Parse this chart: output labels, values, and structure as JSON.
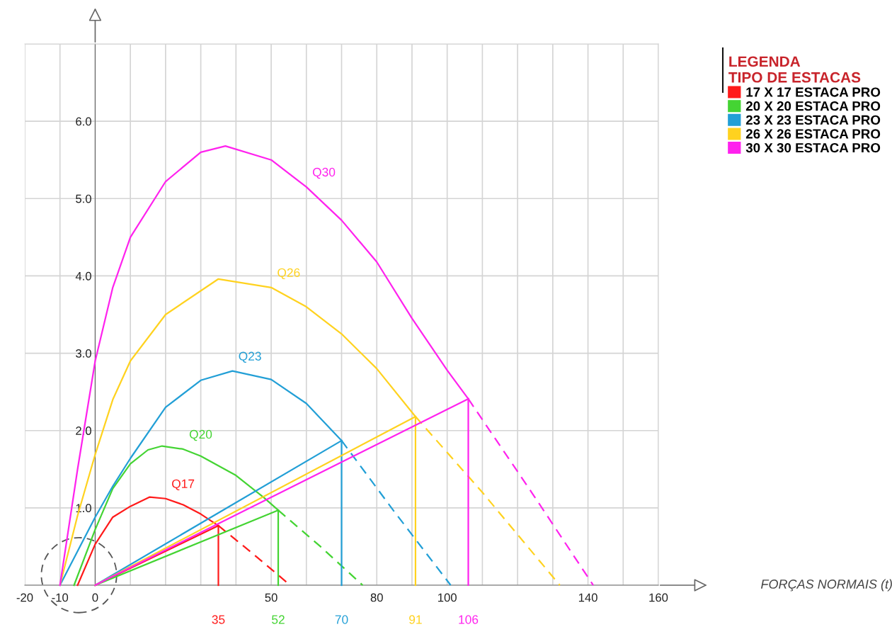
{
  "chart_data": {
    "type": "line",
    "legend_title": "LEGENDA\nTIPO DE ESTACAS",
    "legend": "top right",
    "grid": true,
    "xlim": [
      -20,
      160
    ],
    "ylim": [
      0,
      7
    ],
    "xticks": [
      -20,
      -10,
      0,
      {
        "value": 10,
        "label": null
      },
      {
        "value": 20,
        "label": null
      },
      {
        "value": 30,
        "label": null
      },
      {
        "value": 40,
        "label": null
      },
      50,
      {
        "value": 60,
        "label": null
      },
      {
        "value": 70,
        "label": null
      },
      80,
      {
        "value": 90,
        "label": null
      },
      100,
      {
        "value": 110,
        "label": null
      },
      {
        "value": 120,
        "label": null
      },
      {
        "value": 130,
        "label": null
      },
      140,
      {
        "value": 150,
        "label": null
      },
      160
    ],
    "yticks": [
      {
        "value": 0,
        "label": null
      },
      {
        "value": 1,
        "label": "1.0"
      },
      {
        "value": 2,
        "label": "2.0"
      },
      {
        "value": 3,
        "label": "3.0"
      },
      {
        "value": 4,
        "label": "4.0"
      },
      {
        "value": 5,
        "label": "5.0"
      },
      {
        "value": 6,
        "label": "6.0"
      },
      {
        "value": 7,
        "label": null
      }
    ],
    "annotations": [
      "Q17",
      "Q20",
      "Q23",
      "Q26",
      "Q30",
      "FORÇAS NORMAIS (t)",
      {
        "text": "35",
        "x": 35,
        "y": 0
      },
      {
        "text": "52",
        "x": 52,
        "y": 0
      },
      {
        "text": "70",
        "x": 70,
        "y": 0
      },
      {
        "text": "91",
        "x": 91,
        "y": 0
      },
      {
        "text": "106",
        "x": 106,
        "y": 0
      }
    ],
    "series": [
      {
        "name": "17 X 17 ESTACA PRO",
        "color": "#ff1a1a",
        "x": [
          -5,
          0,
          5,
          10,
          15.5,
          20,
          25,
          30,
          35
        ],
        "values": [
          0,
          0.53,
          0.88,
          1.02,
          1.14,
          1.12,
          1.04,
          0.92,
          0.77
        ]
      },
      {
        "color": "#ff1a1a",
        "line_style": "dashed",
        "x": [
          35,
          45,
          55.4
        ],
        "values": [
          0.77,
          0.4,
          0
        ]
      },
      {
        "color": "#ff1a1a",
        "x": [
          0,
          35
        ],
        "values": [
          0,
          0.77
        ]
      },
      {
        "color": "#ff1a1a",
        "x": [
          35,
          35
        ],
        "values": [
          0,
          0.77
        ]
      },
      {
        "name": "20 X 20 ESTACA PRO",
        "color": "#44d433",
        "x": [
          -6,
          0,
          5,
          10,
          15,
          19,
          25,
          30,
          40,
          48,
          52
        ],
        "values": [
          0,
          0.72,
          1.25,
          1.57,
          1.75,
          1.8,
          1.76,
          1.67,
          1.42,
          1.13,
          0.97
        ]
      },
      {
        "color": "#44d433",
        "line_style": "dashed",
        "x": [
          52,
          64,
          76
        ],
        "values": [
          0.97,
          0.5,
          0
        ]
      },
      {
        "color": "#44d433",
        "x": [
          0,
          52
        ],
        "values": [
          0,
          0.97
        ]
      },
      {
        "color": "#44d433",
        "x": [
          52,
          52
        ],
        "values": [
          0,
          0.97
        ]
      },
      {
        "name": "23 X 23 ESTACA PRO",
        "color": "#229fd6",
        "x": [
          -10,
          0,
          5,
          10,
          20,
          30,
          39,
          50,
          60,
          70
        ],
        "values": [
          0,
          0.88,
          1.28,
          1.64,
          2.3,
          2.65,
          2.77,
          2.66,
          2.35,
          1.87
        ]
      },
      {
        "color": "#229fd6",
        "line_style": "dashed",
        "x": [
          70,
          85,
          101
        ],
        "values": [
          1.87,
          0.95,
          0
        ]
      },
      {
        "color": "#229fd6",
        "x": [
          0,
          70
        ],
        "values": [
          0,
          1.87
        ]
      },
      {
        "color": "#229fd6",
        "x": [
          70,
          70
        ],
        "values": [
          0,
          1.87
        ]
      },
      {
        "name": "26 X 26 ESTACA PRO",
        "color": "#ffd21f",
        "x": [
          -10,
          -5,
          0,
          5,
          10,
          20,
          35,
          50,
          60,
          70,
          80,
          91
        ],
        "values": [
          0,
          0.9,
          1.69,
          2.4,
          2.9,
          3.5,
          3.96,
          3.85,
          3.6,
          3.25,
          2.8,
          2.18
        ]
      },
      {
        "color": "#ffd21f",
        "line_style": "dashed",
        "x": [
          91,
          110,
          132
        ],
        "values": [
          2.18,
          1.2,
          0
        ]
      },
      {
        "color": "#ffd21f",
        "x": [
          0,
          91
        ],
        "values": [
          0,
          2.18
        ]
      },
      {
        "color": "#ffd21f",
        "x": [
          91,
          91
        ],
        "values": [
          0,
          2.18
        ]
      },
      {
        "name": "30 X 30 ESTACA PRO",
        "color": "#ff22ee",
        "x": [
          -10,
          -5,
          0,
          5,
          10,
          20,
          30,
          37,
          50,
          60,
          70,
          80,
          90,
          100,
          106
        ],
        "values": [
          0,
          1.5,
          2.9,
          3.85,
          4.5,
          5.22,
          5.6,
          5.68,
          5.5,
          5.15,
          4.72,
          4.18,
          3.45,
          2.78,
          2.41
        ]
      },
      {
        "color": "#ff22ee",
        "line_style": "dashed",
        "x": [
          106,
          124,
          141.5
        ],
        "values": [
          2.41,
          1.2,
          0
        ]
      },
      {
        "color": "#ff22ee",
        "x": [
          0,
          106
        ],
        "values": [
          0,
          2.41
        ]
      },
      {
        "color": "#ff22ee",
        "x": [
          106,
          106
        ],
        "values": [
          0,
          2.41
        ]
      }
    ]
  }
}
